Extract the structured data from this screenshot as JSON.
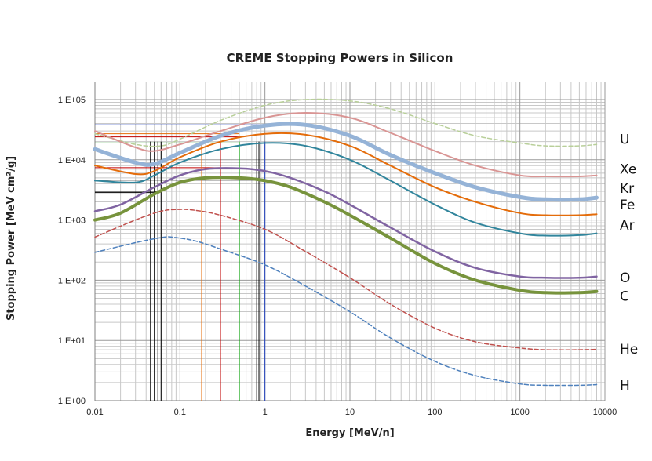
{
  "chart_data": {
    "type": "line",
    "title": "CREME Stopping Powers in Silicon",
    "xlabel": "Energy [MeV/n]",
    "ylabel": "Stopping Power [MeV cm²/g]",
    "x_scale": "log",
    "y_scale": "log",
    "xlim": [
      0.01,
      10000
    ],
    "ylim": [
      1,
      100000
    ],
    "x_ticks": [
      "0.01",
      "0.1",
      "1",
      "10",
      "100",
      "1000",
      "10000"
    ],
    "y_ticks": [
      "1.E+00",
      "1.E+01",
      "1.E+02",
      "1.E+03",
      "1.E+04",
      "1.E+05"
    ],
    "grid": true,
    "series": [
      {
        "name": "U",
        "color": "#b8cf99",
        "style": "dashed",
        "width": 1.5,
        "x": [
          0.01,
          0.03,
          0.06,
          0.1,
          0.3,
          1,
          3,
          10,
          30,
          100,
          300,
          1000,
          2000,
          5000,
          8000
        ],
        "y": [
          27000,
          18000,
          17000,
          22000,
          45000,
          80000,
          100000,
          95000,
          70000,
          40000,
          25000,
          19000,
          17000,
          17000,
          18000
        ]
      },
      {
        "name": "Xe",
        "color": "#d99594",
        "style": "solid",
        "width": 2,
        "x": [
          0.01,
          0.03,
          0.05,
          0.1,
          0.3,
          1,
          3,
          10,
          30,
          100,
          300,
          1000,
          2000,
          5000,
          8000
        ],
        "y": [
          30000,
          16000,
          14000,
          18000,
          30000,
          50000,
          60000,
          50000,
          28000,
          14000,
          8000,
          5500,
          5300,
          5300,
          5500
        ]
      },
      {
        "name": "Kr",
        "color": "#95b3d7",
        "style": "solid",
        "width": 5,
        "x": [
          0.01,
          0.03,
          0.05,
          0.1,
          0.3,
          1,
          3,
          10,
          30,
          100,
          300,
          1000,
          2000,
          5000,
          8000
        ],
        "y": [
          15000,
          9000,
          8500,
          13000,
          25000,
          37000,
          38000,
          25000,
          12000,
          6000,
          3500,
          2400,
          2200,
          2200,
          2350
        ]
      },
      {
        "name": "Fe",
        "color": "#e46c0a",
        "style": "solid",
        "width": 2,
        "x": [
          0.01,
          0.03,
          0.05,
          0.1,
          0.3,
          1,
          3,
          10,
          30,
          100,
          300,
          1000,
          2000,
          5000,
          8000
        ],
        "y": [
          8000,
          5800,
          6500,
          11000,
          20000,
          27000,
          26000,
          17000,
          8000,
          3500,
          2000,
          1300,
          1200,
          1200,
          1250
        ]
      },
      {
        "name": "Ar",
        "color": "#31859c",
        "style": "solid",
        "width": 2,
        "x": [
          0.01,
          0.03,
          0.05,
          0.1,
          0.3,
          1,
          3,
          10,
          30,
          100,
          300,
          1000,
          2000,
          5000,
          8000
        ],
        "y": [
          4500,
          4200,
          5500,
          9000,
          15000,
          19000,
          17000,
          10000,
          4500,
          1800,
          900,
          600,
          550,
          560,
          600
        ]
      },
      {
        "name": "O",
        "color": "#8064a2",
        "style": "solid",
        "width": 2.5,
        "x": [
          0.01,
          0.02,
          0.05,
          0.1,
          0.2,
          0.5,
          1,
          2,
          5,
          10,
          30,
          100,
          300,
          1000,
          2000,
          5000,
          8000
        ],
        "y": [
          1400,
          1800,
          3500,
          5500,
          7000,
          7200,
          6500,
          5000,
          3000,
          1800,
          750,
          300,
          160,
          115,
          110,
          110,
          115
        ]
      },
      {
        "name": "C",
        "color": "#77933c",
        "style": "solid",
        "width": 4,
        "x": [
          0.01,
          0.02,
          0.05,
          0.1,
          0.2,
          0.5,
          1,
          2,
          5,
          10,
          30,
          100,
          300,
          1000,
          2000,
          5000,
          8000
        ],
        "y": [
          1000,
          1300,
          2700,
          4200,
          5000,
          5000,
          4500,
          3500,
          2000,
          1200,
          500,
          190,
          100,
          68,
          62,
          62,
          65
        ]
      },
      {
        "name": "He",
        "color": "#c0504d",
        "style": "dashed",
        "width": 1.5,
        "x": [
          0.01,
          0.03,
          0.06,
          0.1,
          0.15,
          0.3,
          1,
          3,
          10,
          30,
          100,
          300,
          1000,
          2000,
          5000,
          8000
        ],
        "y": [
          520,
          1000,
          1400,
          1500,
          1450,
          1200,
          700,
          300,
          110,
          40,
          16,
          9.5,
          7.5,
          7,
          7,
          7.1
        ]
      },
      {
        "name": "H",
        "color": "#4f81bd",
        "style": "dashed",
        "width": 1.5,
        "x": [
          0.01,
          0.03,
          0.06,
          0.08,
          0.15,
          0.3,
          1,
          3,
          10,
          30,
          100,
          300,
          1000,
          2000,
          5000,
          8000
        ],
        "y": [
          290,
          420,
          510,
          520,
          450,
          330,
          180,
          80,
          30,
          11,
          4.5,
          2.6,
          1.9,
          1.8,
          1.8,
          1.85
        ]
      }
    ],
    "reference_lines": {
      "horizontal": [
        {
          "y": 38000,
          "x_end": 1,
          "color": "#1f3fbf"
        },
        {
          "y": 27000,
          "x_end": 0.5,
          "color": "#e46c0a"
        },
        {
          "y": 24000,
          "x_end": 0.5,
          "color": "#c00000"
        },
        {
          "y": 19000,
          "x_end": 0.5,
          "color": "#00a000"
        },
        {
          "y": 7400,
          "x_end": 0.3,
          "color": "#c00000"
        },
        {
          "y": 4600,
          "x_end": 0.85,
          "color": "#000000"
        },
        {
          "y": 3000,
          "x_end": 0.06,
          "color": "#000000"
        },
        {
          "y": 2850,
          "x_end": 0.055,
          "color": "#000000"
        }
      ],
      "vertical": [
        {
          "x": 0.045,
          "color": "#000000"
        },
        {
          "x": 0.05,
          "color": "#000000"
        },
        {
          "x": 0.055,
          "color": "#000000"
        },
        {
          "x": 0.06,
          "color": "#000000"
        },
        {
          "x": 0.18,
          "color": "#e46c0a"
        },
        {
          "x": 0.3,
          "color": "#c00000"
        },
        {
          "x": 0.5,
          "color": "#00a000"
        },
        {
          "x": 0.8,
          "color": "#000000"
        },
        {
          "x": 0.85,
          "color": "#000000"
        },
        {
          "x": 1,
          "color": "#1f3fbf"
        }
      ]
    },
    "ion_labels": [
      {
        "text": "U",
        "y": 22000
      },
      {
        "text": "Xe",
        "y": 7000
      },
      {
        "text": "Kr",
        "y": 3400
      },
      {
        "text": "Fe",
        "y": 1800
      },
      {
        "text": "Ar",
        "y": 820
      },
      {
        "text": "O",
        "y": 110
      },
      {
        "text": "C",
        "y": 55
      },
      {
        "text": "He",
        "y": 7.2
      },
      {
        "text": "H",
        "y": 1.8
      }
    ]
  }
}
